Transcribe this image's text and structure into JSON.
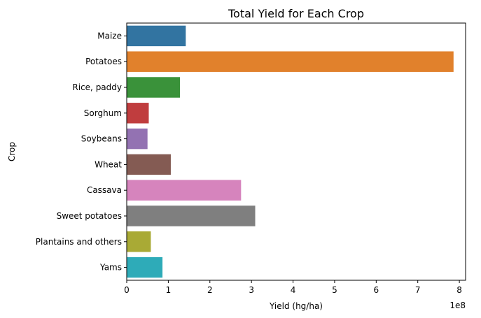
{
  "chart_data": {
    "type": "bar",
    "orientation": "horizontal",
    "title": "Total Yield for Each Crop",
    "xlabel": "Yield (hg/ha)",
    "ylabel": "Crop",
    "x_offset_text": "1e8",
    "xlim": [
      0,
      815000000.0
    ],
    "x_ticks": [
      0,
      100000000.0,
      200000000.0,
      300000000.0,
      400000000.0,
      500000000.0,
      600000000.0,
      700000000.0,
      800000000.0
    ],
    "x_tick_labels": [
      "0",
      "1",
      "2",
      "3",
      "4",
      "5",
      "6",
      "7",
      "8"
    ],
    "grid": false,
    "legend": "none",
    "categories": [
      "Maize",
      "Potatoes",
      "Rice, paddy",
      "Sorghum",
      "Soybeans",
      "Wheat",
      "Cassava",
      "Sweet potatoes",
      "Plantains and others",
      "Yams"
    ],
    "values": [
      142000000,
      786000000,
      128000000,
      53000000,
      50000000,
      106000000,
      275000000,
      309000000,
      58000000,
      86000000
    ],
    "colors": [
      "#3274a1",
      "#e1812c",
      "#3a923a",
      "#c03d3e",
      "#9372b2",
      "#845b53",
      "#d684bd",
      "#7f7f7f",
      "#a9aa35",
      "#2eabb8"
    ]
  }
}
